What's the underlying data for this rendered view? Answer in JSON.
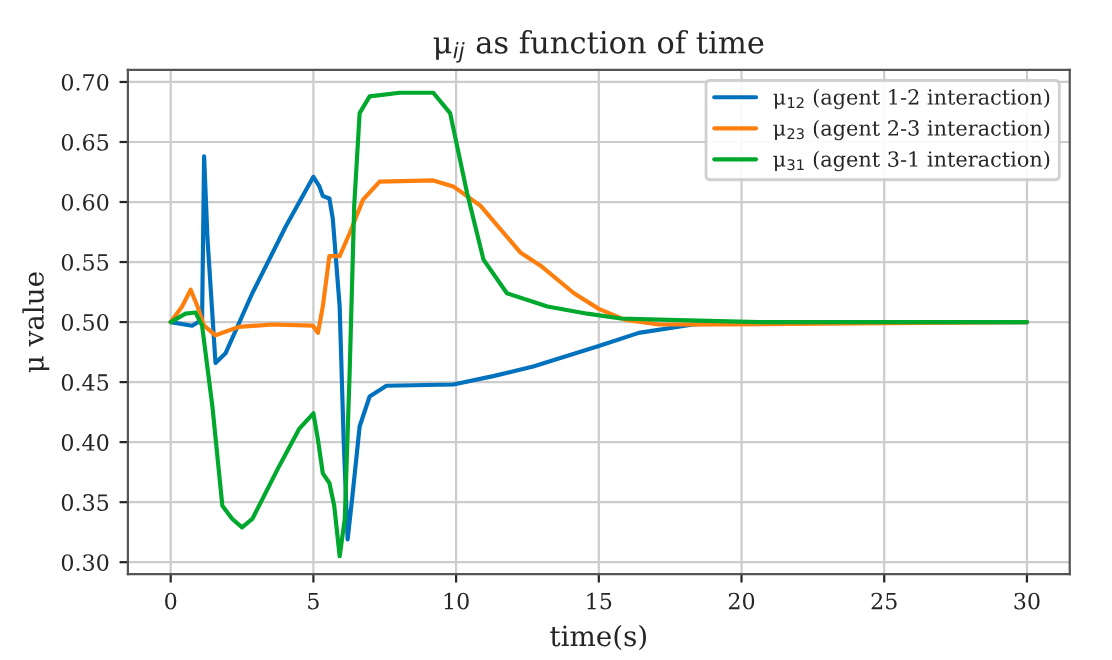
{
  "chart_data": {
    "type": "line",
    "title": "μ$_{ij}$ as function of time",
    "xlabel": "time(s)",
    "ylabel": "μ value",
    "xlim": [
      -1.5,
      31.5
    ],
    "xticks": [
      0,
      5,
      10,
      15,
      20,
      25,
      30
    ],
    "ylim": [
      0.29,
      0.71
    ],
    "yticks": [
      {
        "value": 0.3,
        "label": "0.30"
      },
      {
        "value": 0.35,
        "label": "0.35"
      },
      {
        "value": 0.4,
        "label": "0.40"
      },
      {
        "value": 0.45,
        "label": "0.45"
      },
      {
        "value": 0.5,
        "label": "0.50"
      },
      {
        "value": 0.55,
        "label": "0.55"
      },
      {
        "value": 0.6,
        "label": "0.60"
      },
      {
        "value": 0.65,
        "label": "0.65"
      },
      {
        "value": 0.7,
        "label": "0.70"
      }
    ],
    "grid": true,
    "legend": "top right",
    "marker": "none",
    "line_style": "solid",
    "series": [
      {
        "name": "μ$_{12}$ (agent 1-2 interaction)",
        "color": "#0072bd",
        "x": [
          0,
          0.75,
          1.1,
          1.17,
          1.29,
          1.57,
          1.92,
          2.86,
          4.04,
          5.0,
          5.21,
          5.33,
          5.56,
          5.68,
          5.92,
          6.06,
          6.2,
          6.38,
          6.62,
          6.97,
          7.56,
          9.9,
          11.3,
          12.7,
          15.0,
          16.4,
          18.3,
          20,
          30
        ],
        "values": [
          0.5,
          0.497,
          0.502,
          0.638,
          0.569,
          0.466,
          0.474,
          0.524,
          0.58,
          0.621,
          0.613,
          0.605,
          0.603,
          0.586,
          0.513,
          0.402,
          0.319,
          0.358,
          0.413,
          0.438,
          0.447,
          0.448,
          0.455,
          0.463,
          0.48,
          0.491,
          0.498,
          0.5,
          0.5
        ]
      },
      {
        "name": "μ$_{23}$ (agent 2-3 interaction)",
        "color": "#ff7f0e",
        "x": [
          0,
          0.4,
          0.7,
          0.94,
          1.17,
          1.57,
          2.39,
          3.57,
          4.98,
          5.16,
          5.33,
          5.56,
          5.92,
          6.27,
          6.74,
          7.32,
          9.2,
          9.9,
          10.85,
          12.25,
          12.96,
          14.13,
          15.0,
          15.9,
          17.1,
          19.5,
          30
        ],
        "values": [
          0.5,
          0.513,
          0.527,
          0.513,
          0.497,
          0.489,
          0.496,
          0.498,
          0.497,
          0.491,
          0.513,
          0.555,
          0.555,
          0.574,
          0.602,
          0.617,
          0.618,
          0.613,
          0.597,
          0.558,
          0.547,
          0.524,
          0.511,
          0.502,
          0.498,
          0.498,
          0.5
        ]
      },
      {
        "name": "μ$_{31}$ (agent 3-1 interaction)",
        "color": "#00a82d",
        "x": [
          0,
          0.52,
          0.87,
          1.1,
          1.46,
          1.81,
          2.16,
          2.5,
          2.86,
          3.8,
          4.5,
          5.0,
          5.16,
          5.33,
          5.56,
          5.73,
          5.92,
          6.1,
          6.27,
          6.43,
          6.62,
          6.97,
          8.03,
          9.2,
          9.79,
          10.38,
          10.96,
          11.78,
          13.2,
          14.6,
          15.77,
          17.1,
          20.6,
          30
        ],
        "values": [
          0.5,
          0.507,
          0.508,
          0.497,
          0.43,
          0.347,
          0.336,
          0.329,
          0.336,
          0.38,
          0.411,
          0.424,
          0.402,
          0.374,
          0.366,
          0.347,
          0.305,
          0.336,
          0.458,
          0.597,
          0.674,
          0.688,
          0.691,
          0.691,
          0.674,
          0.608,
          0.552,
          0.524,
          0.513,
          0.507,
          0.503,
          0.502,
          0.5,
          0.5
        ]
      }
    ]
  }
}
